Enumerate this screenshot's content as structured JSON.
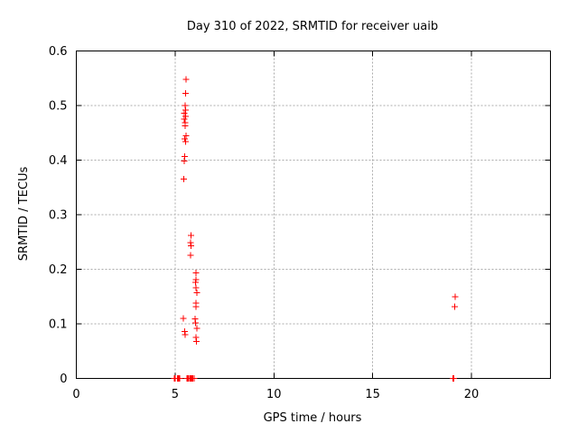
{
  "chart_data": {
    "type": "scatter",
    "title": "Day 310 of 2022, SRMTID for receiver uaib",
    "xlabel": "GPS time / hours",
    "ylabel": "SRMTID / TECUs",
    "xlim": [
      0,
      24
    ],
    "ylim": [
      0,
      0.6
    ],
    "xticks": {
      "values": [
        0,
        5,
        10,
        15,
        20
      ],
      "labels": [
        "0",
        "5",
        "10",
        "15",
        "20"
      ]
    },
    "yticks": {
      "values": [
        0,
        0.1,
        0.2,
        0.3,
        0.4,
        0.5,
        0.6
      ],
      "labels": [
        "0",
        "0.1",
        "0.2",
        "0.3",
        "0.4",
        "0.5",
        "0.6"
      ]
    },
    "grid": true,
    "legend": "none",
    "marker": "plus",
    "colors": {
      "marker": "#ff0000",
      "grid": "#ababab",
      "frame": "#000000",
      "text": "#000000",
      "background": "#ffffff"
    },
    "series": [
      {
        "name": "SRMTID",
        "points": [
          [
            5.55,
            0.548
          ],
          [
            5.52,
            0.522
          ],
          [
            5.5,
            0.5
          ],
          [
            5.52,
            0.492
          ],
          [
            5.47,
            0.486
          ],
          [
            5.52,
            0.48
          ],
          [
            5.46,
            0.475
          ],
          [
            5.51,
            0.469
          ],
          [
            5.5,
            0.463
          ],
          [
            5.56,
            0.445
          ],
          [
            5.49,
            0.439
          ],
          [
            5.53,
            0.434
          ],
          [
            5.48,
            0.407
          ],
          [
            5.46,
            0.398
          ],
          [
            5.44,
            0.365
          ],
          [
            5.81,
            0.262
          ],
          [
            5.78,
            0.249
          ],
          [
            5.8,
            0.243
          ],
          [
            5.79,
            0.226
          ],
          [
            6.05,
            0.193
          ],
          [
            6.06,
            0.181
          ],
          [
            6.03,
            0.176
          ],
          [
            6.06,
            0.166
          ],
          [
            6.11,
            0.157
          ],
          [
            6.06,
            0.138
          ],
          [
            6.05,
            0.131
          ],
          [
            5.42,
            0.11
          ],
          [
            6.0,
            0.109
          ],
          [
            6.03,
            0.102
          ],
          [
            6.11,
            0.092
          ],
          [
            5.48,
            0.086
          ],
          [
            5.5,
            0.08
          ],
          [
            6.05,
            0.075
          ],
          [
            6.07,
            0.068
          ],
          [
            19.18,
            0.15
          ],
          [
            19.15,
            0.131
          ],
          [
            4.96,
            0
          ],
          [
            5.01,
            0
          ],
          [
            5.12,
            0
          ],
          [
            5.16,
            0
          ],
          [
            5.2,
            0
          ],
          [
            5.23,
            0
          ],
          [
            5.6,
            0
          ],
          [
            5.65,
            0
          ],
          [
            5.7,
            0
          ],
          [
            5.75,
            0
          ],
          [
            5.8,
            0
          ],
          [
            5.85,
            0
          ],
          [
            5.9,
            0
          ],
          [
            5.97,
            0
          ],
          [
            19.07,
            0
          ],
          [
            19.11,
            0
          ]
        ]
      }
    ]
  }
}
